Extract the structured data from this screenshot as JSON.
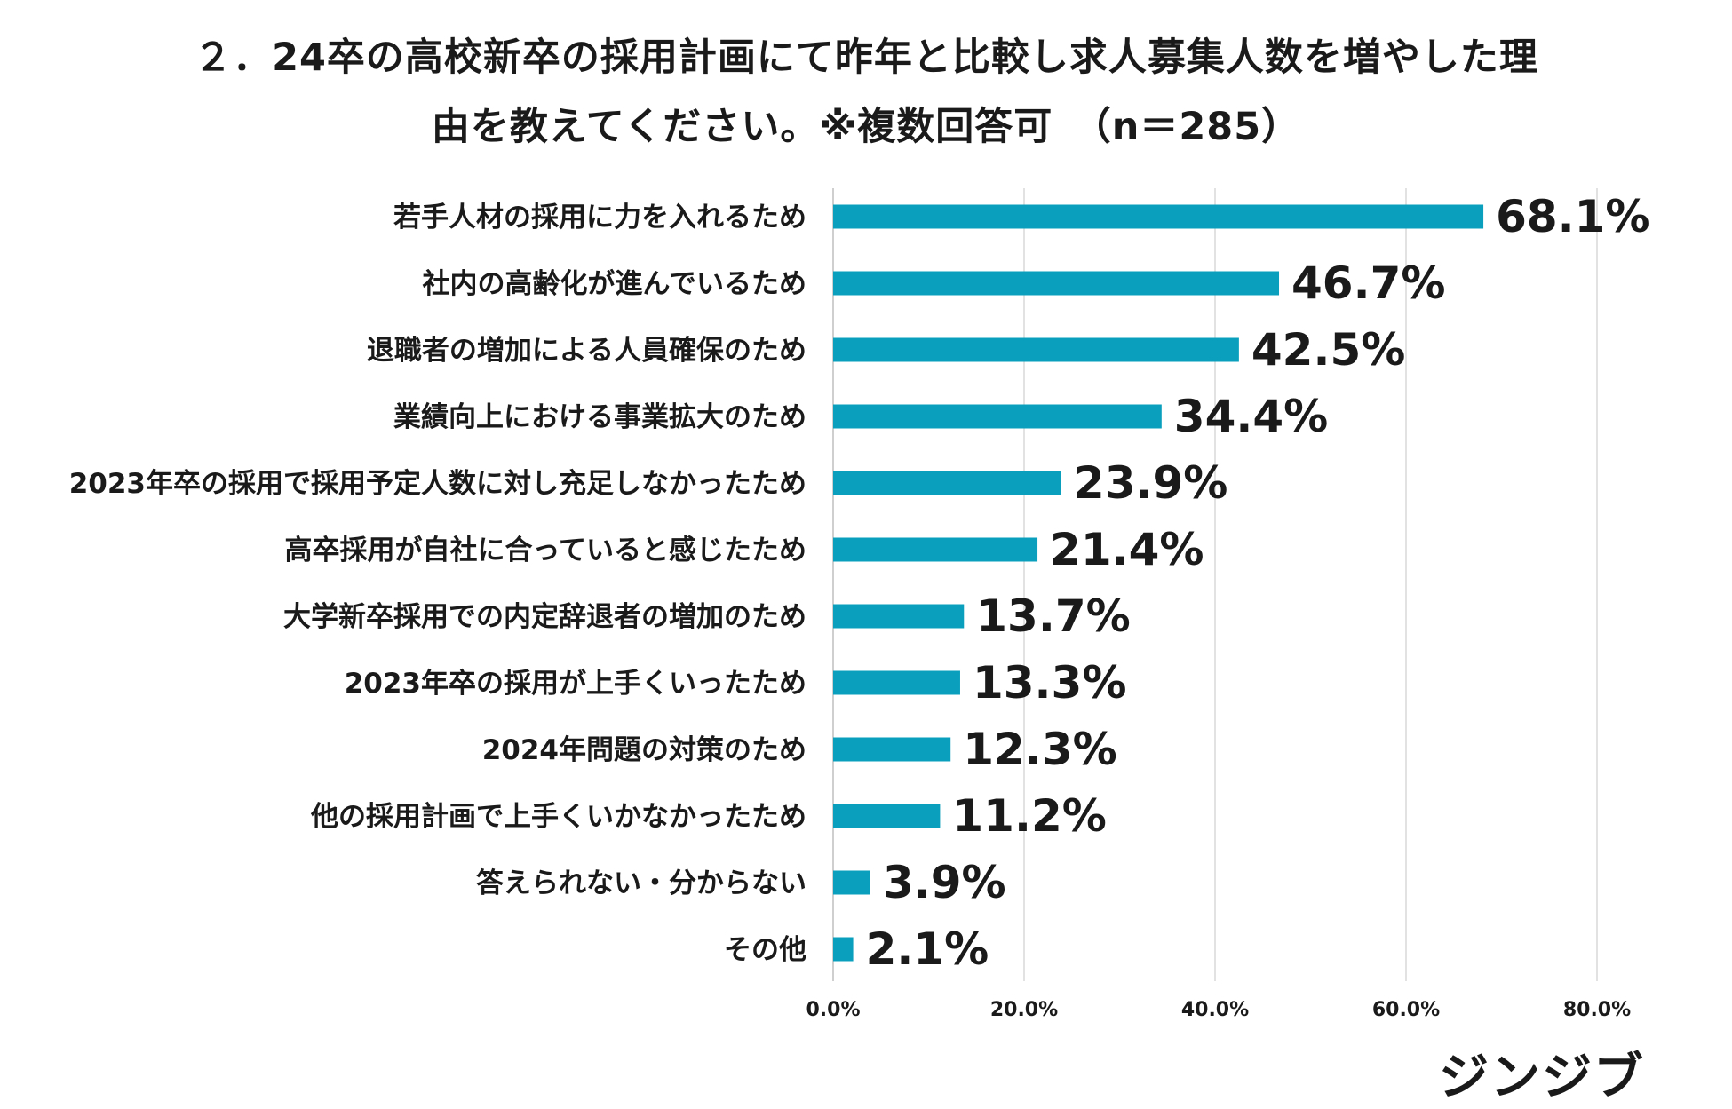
{
  "title_line1": "２．24卒の高校新卒の採用計画にて昨年と比較し求人募集人数を増やした理",
  "title_line2": "由を教えてください。※複数回答可　（n＝285）",
  "logo_text": "ジンジブ",
  "bar_color": "#0aa0bd",
  "grid_color": "#d9d9d9",
  "chart_data": {
    "type": "bar",
    "orientation": "horizontal",
    "title": "２．24卒の高校新卒の採用計画にて昨年と比較し求人募集人数を増やした理由を教えてください。※複数回答可　（n＝285）",
    "categories": [
      "若手人材の採用に力を入れるため",
      "社内の高齢化が進んでいるため",
      "退職者の増加による人員確保のため",
      "業績向上における事業拡大のため",
      "2023年卒の採用で採用予定人数に対し充足しなかったため",
      "高卒採用が自社に合っていると感じたため",
      "大学新卒採用での内定辞退者の増加のため",
      "2023年卒の採用が上手くいったため",
      "2024年問題の対策のため",
      "他の採用計画で上手くいかなかったため",
      "答えられない・分からない",
      "その他"
    ],
    "values": [
      68.1,
      46.7,
      42.5,
      34.4,
      23.9,
      21.4,
      13.7,
      13.3,
      12.3,
      11.2,
      3.9,
      2.1
    ],
    "value_labels": [
      "68.1%",
      "46.7%",
      "42.5%",
      "34.4%",
      "23.9%",
      "21.4%",
      "13.7%",
      "13.3%",
      "12.3%",
      "11.2%",
      "3.9%",
      "2.1%"
    ],
    "xlim": [
      0,
      80
    ],
    "xticks": [
      0,
      20,
      40,
      60,
      80
    ],
    "xtick_labels": [
      "0.0%",
      "20.0%",
      "40.0%",
      "60.0%",
      "80.0%"
    ],
    "grid": true,
    "xlabel": "",
    "ylabel": ""
  }
}
